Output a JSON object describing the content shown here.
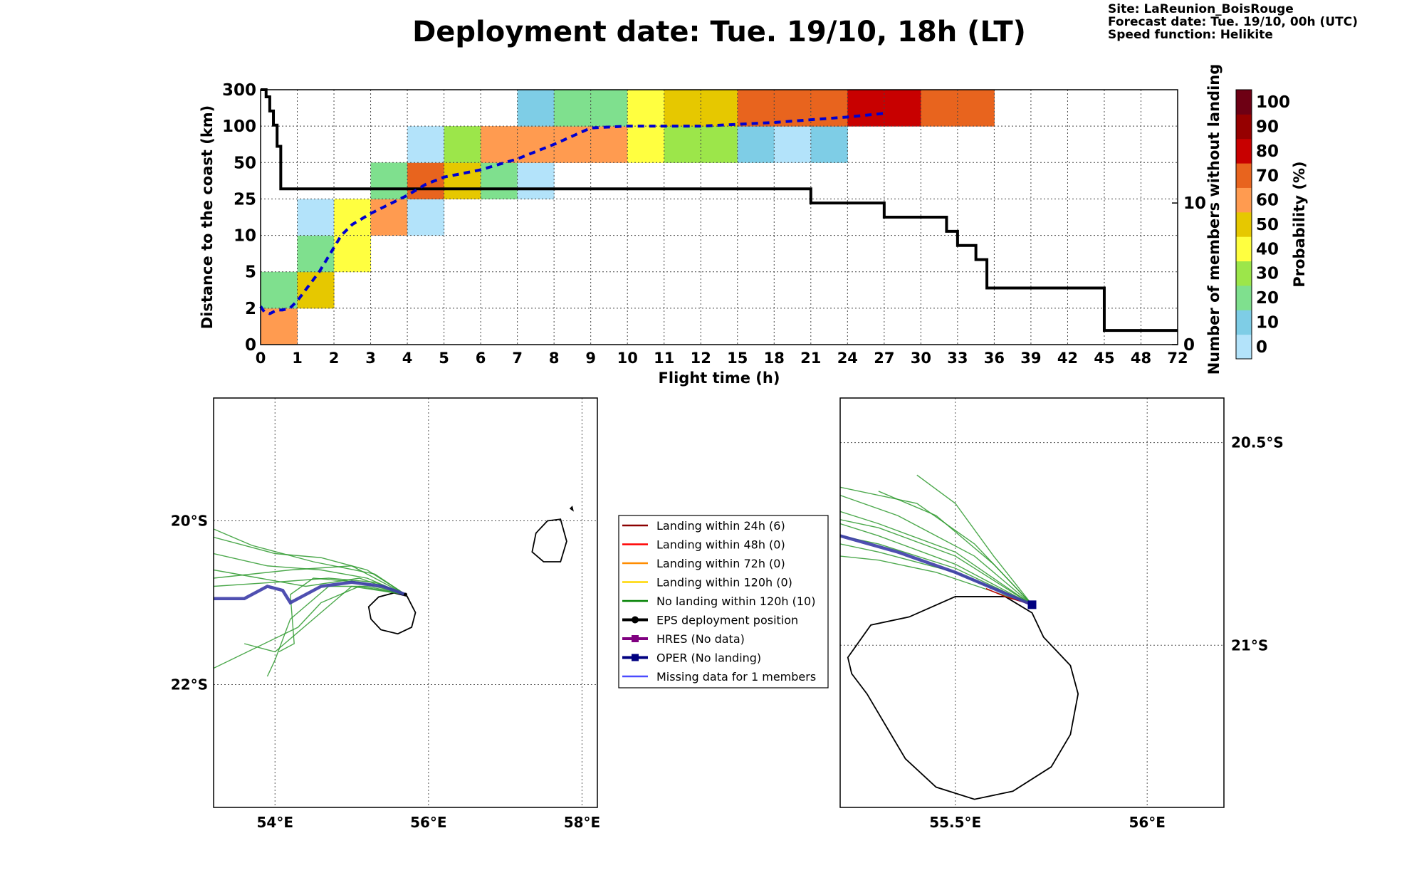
{
  "title": "Deployment date: Tue. 19/10, 18h (LT)",
  "info": {
    "site": "Site: LaReunion_BoisRouge",
    "forecast": "Forecast date: Tue. 19/10, 00h (UTC)",
    "speed": "Speed function: Helikite"
  },
  "chart_data": [
    {
      "type": "heatmap",
      "xlabel": "Flight time (h)",
      "ylabel": "Distance to the coast (km)",
      "ylabel_right": "Number of members without landing",
      "colorbar_label": "Probability (%)",
      "x_ticks": [
        "0",
        "1",
        "2",
        "3",
        "4",
        "5",
        "6",
        "7",
        "8",
        "9",
        "10",
        "11",
        "12",
        "15",
        "18",
        "21",
        "24",
        "27",
        "30",
        "33",
        "36",
        "39",
        "42",
        "45",
        "48",
        "72"
      ],
      "y_ticks": [
        "0",
        "2",
        "5",
        "10",
        "25",
        "50",
        "100",
        "300"
      ],
      "right_ticks": [
        {
          "label": "0",
          "value": 0
        },
        {
          "label": "10",
          "value": 10
        }
      ],
      "right_ylim": [
        0,
        18
      ],
      "grid": true,
      "colorbar": {
        "ticks": [
          "0",
          "10",
          "20",
          "30",
          "40",
          "50",
          "60",
          "70",
          "80",
          "90",
          "100"
        ],
        "colors": [
          "#b3e3fa",
          "#7ecde6",
          "#7fe08e",
          "#9ce64a",
          "#ffff40",
          "#e6c800",
          "#ff9b50",
          "#e8641e",
          "#c80000",
          "#960000",
          "#6e0014"
        ]
      },
      "cells": [
        {
          "x": 0,
          "y": 0,
          "p": 60
        },
        {
          "x": 0,
          "y": 1,
          "p": 20
        },
        {
          "x": 1,
          "y": 1,
          "p": 50
        },
        {
          "x": 1,
          "y": 2,
          "p": 20
        },
        {
          "x": 1,
          "y": 3,
          "p": 0
        },
        {
          "x": 2,
          "y": 2,
          "p": 40
        },
        {
          "x": 2,
          "y": 3,
          "p": 40
        },
        {
          "x": 3,
          "y": 3,
          "p": 60
        },
        {
          "x": 3,
          "y": 4,
          "p": 20
        },
        {
          "x": 4,
          "y": 3,
          "p": 0
        },
        {
          "x": 4,
          "y": 4,
          "p": 70
        },
        {
          "x": 4,
          "y": 5,
          "p": 0
        },
        {
          "x": 5,
          "y": 4,
          "p": 50
        },
        {
          "x": 5,
          "y": 5,
          "p": 30
        },
        {
          "x": 6,
          "y": 4,
          "p": 20
        },
        {
          "x": 6,
          "y": 5,
          "p": 60
        },
        {
          "x": 7,
          "y": 4,
          "p": 0
        },
        {
          "x": 7,
          "y": 5,
          "p": 60
        },
        {
          "x": 7,
          "y": 6,
          "p": 10
        },
        {
          "x": 8,
          "y": 5,
          "p": 60
        },
        {
          "x": 8,
          "y": 6,
          "p": 20
        },
        {
          "x": 9,
          "y": 5,
          "p": 60
        },
        {
          "x": 9,
          "y": 6,
          "p": 20
        },
        {
          "x": 10,
          "y": 5,
          "p": 40
        },
        {
          "x": 10,
          "y": 6,
          "p": 40
        },
        {
          "x": 11,
          "y": 5,
          "p": 30
        },
        {
          "x": 11,
          "y": 6,
          "p": 50
        },
        {
          "x": 12,
          "y": 5,
          "p": 30
        },
        {
          "x": 12,
          "y": 6,
          "p": 50
        },
        {
          "x": 13,
          "y": 5,
          "p": 10
        },
        {
          "x": 13,
          "y": 6,
          "p": 70
        },
        {
          "x": 14,
          "y": 5,
          "p": 0
        },
        {
          "x": 14,
          "y": 6,
          "p": 70
        },
        {
          "x": 15,
          "y": 5,
          "p": 10
        },
        {
          "x": 15,
          "y": 6,
          "p": 70
        },
        {
          "x": 16,
          "y": 6,
          "p": 80
        },
        {
          "x": 17,
          "y": 6,
          "p": 80
        },
        {
          "x": 18,
          "y": 6,
          "p": 70
        },
        {
          "x": 19,
          "y": 6,
          "p": 70
        }
      ],
      "dashed_median": {
        "color": "#0000d0",
        "x": [
          0,
          0.1,
          0.25,
          0.45,
          0.6,
          0.8,
          1.0,
          1.3,
          1.6,
          1.9,
          2.2,
          2.5,
          3.0,
          3.5,
          4.0,
          4.5,
          5.0,
          6.0,
          7.0,
          8.0,
          9.0,
          10.0,
          12.0,
          14.0,
          16.0,
          17.0
        ],
        "y": [
          1.05,
          0.9,
          0.85,
          0.95,
          0.95,
          1.0,
          1.2,
          1.6,
          2.0,
          2.5,
          3.0,
          3.3,
          3.6,
          3.85,
          4.1,
          4.4,
          4.6,
          4.8,
          5.1,
          5.5,
          5.95,
          6.0,
          6.0,
          6.1,
          6.25,
          6.35
        ]
      },
      "members_without_landing": {
        "color": "#000000",
        "x": [
          0,
          0.15,
          0.25,
          0.35,
          0.45,
          0.55,
          14.7,
          15.0,
          16.5,
          17.0,
          18.5,
          18.7,
          19.0,
          19.5,
          19.8,
          22.5,
          23.0
        ],
        "y": [
          18,
          17.5,
          16.5,
          15.5,
          14,
          11,
          11,
          10,
          10,
          9,
          9,
          8,
          7,
          6,
          4,
          4,
          1
        ]
      }
    },
    {
      "type": "map",
      "x_ticks": [
        "54°E",
        "56°E",
        "58°E"
      ],
      "y_ticks": [
        "20°S",
        "22°S"
      ],
      "xlim": [
        53.2,
        58.2
      ],
      "ylim": [
        -23.5,
        -18.5
      ],
      "deployment": [
        55.7,
        -20.9
      ],
      "oper_track": [
        [
          55.7,
          -20.9
        ],
        [
          55.4,
          -20.8
        ],
        [
          55.0,
          -20.75
        ],
        [
          54.6,
          -20.8
        ],
        [
          54.2,
          -21.0
        ],
        [
          54.1,
          -20.85
        ],
        [
          53.9,
          -20.8
        ],
        [
          53.6,
          -20.95
        ],
        [
          53.2,
          -20.95
        ]
      ],
      "member_tracks": [
        [
          [
            55.7,
            -20.9
          ],
          [
            55.2,
            -20.6
          ],
          [
            54.6,
            -20.45
          ],
          [
            54.0,
            -20.4
          ],
          [
            53.2,
            -20.2
          ]
        ],
        [
          [
            55.7,
            -20.9
          ],
          [
            55.3,
            -20.65
          ],
          [
            54.5,
            -20.5
          ],
          [
            53.7,
            -20.3
          ],
          [
            53.2,
            -20.1
          ]
        ],
        [
          [
            55.7,
            -20.9
          ],
          [
            55.0,
            -20.55
          ],
          [
            54.2,
            -20.6
          ],
          [
            53.2,
            -20.7
          ]
        ],
        [
          [
            55.7,
            -20.9
          ],
          [
            55.3,
            -20.75
          ],
          [
            54.7,
            -20.7
          ],
          [
            54.0,
            -20.75
          ],
          [
            53.2,
            -20.8
          ]
        ],
        [
          [
            55.7,
            -20.9
          ],
          [
            55.1,
            -20.7
          ],
          [
            54.4,
            -20.8
          ],
          [
            53.8,
            -20.7
          ],
          [
            53.2,
            -20.6
          ]
        ],
        [
          [
            55.7,
            -20.9
          ],
          [
            55.0,
            -20.8
          ],
          [
            54.5,
            -21.2
          ],
          [
            54.0,
            -21.6
          ],
          [
            53.6,
            -21.5
          ]
        ],
        [
          [
            55.7,
            -20.9
          ],
          [
            55.1,
            -20.8
          ],
          [
            54.6,
            -21.0
          ],
          [
            54.3,
            -21.3
          ],
          [
            53.2,
            -21.8
          ]
        ],
        [
          [
            55.7,
            -20.9
          ],
          [
            55.2,
            -20.8
          ],
          [
            54.7,
            -20.8
          ],
          [
            54.2,
            -21.2
          ],
          [
            54.0,
            -21.7
          ],
          [
            53.9,
            -21.9
          ]
        ],
        [
          [
            55.7,
            -20.9
          ],
          [
            55.1,
            -20.75
          ],
          [
            54.5,
            -20.7
          ],
          [
            54.2,
            -20.9
          ],
          [
            54.25,
            -21.5
          ],
          [
            54.05,
            -21.6
          ]
        ],
        [
          [
            55.7,
            -20.9
          ],
          [
            55.2,
            -20.7
          ],
          [
            54.6,
            -20.6
          ],
          [
            53.9,
            -20.55
          ],
          [
            53.2,
            -20.4
          ]
        ]
      ],
      "islands": [
        {
          "name": "reunion",
          "outline": [
            [
              55.22,
              -21.05
            ],
            [
              55.35,
              -20.93
            ],
            [
              55.55,
              -20.88
            ],
            [
              55.72,
              -20.92
            ],
            [
              55.83,
              -21.12
            ],
            [
              55.78,
              -21.3
            ],
            [
              55.6,
              -21.38
            ],
            [
              55.38,
              -21.33
            ],
            [
              55.25,
              -21.2
            ]
          ]
        },
        {
          "name": "mauritius",
          "outline": [
            [
              57.55,
              -20.0
            ],
            [
              57.72,
              -19.98
            ],
            [
              57.8,
              -20.25
            ],
            [
              57.72,
              -20.5
            ],
            [
              57.5,
              -20.5
            ],
            [
              57.35,
              -20.38
            ],
            [
              57.4,
              -20.15
            ]
          ]
        },
        {
          "name": "islet",
          "outline": [
            [
              57.85,
              -19.85
            ],
            [
              57.87,
              -19.83
            ],
            [
              57.88,
              -19.87
            ]
          ]
        }
      ]
    },
    {
      "type": "map",
      "x_ticks": [
        "55.5°E",
        "56°E"
      ],
      "y_ticks": [
        "20.5°S",
        "21°S"
      ],
      "xlim": [
        55.2,
        56.2
      ],
      "ylim": [
        -21.4,
        -20.39
      ],
      "deployment": [
        55.7,
        -20.9
      ],
      "oper_track": [
        [
          55.7,
          -20.9
        ],
        [
          55.5,
          -20.82
        ],
        [
          55.35,
          -20.77
        ],
        [
          55.2,
          -20.73
        ]
      ],
      "member_tracks": [
        [
          [
            55.7,
            -20.9
          ],
          [
            55.55,
            -20.75
          ],
          [
            55.4,
            -20.65
          ],
          [
            55.2,
            -20.61
          ]
        ],
        [
          [
            55.7,
            -20.9
          ],
          [
            55.55,
            -20.78
          ],
          [
            55.35,
            -20.68
          ],
          [
            55.2,
            -20.63
          ]
        ],
        [
          [
            55.7,
            -20.9
          ],
          [
            55.5,
            -20.77
          ],
          [
            55.3,
            -20.7
          ],
          [
            55.2,
            -20.67
          ]
        ],
        [
          [
            55.7,
            -20.9
          ],
          [
            55.5,
            -20.8
          ],
          [
            55.3,
            -20.73
          ],
          [
            55.2,
            -20.7
          ]
        ],
        [
          [
            55.7,
            -20.9
          ],
          [
            55.5,
            -20.81
          ],
          [
            55.3,
            -20.75
          ],
          [
            55.2,
            -20.73
          ]
        ],
        [
          [
            55.7,
            -20.9
          ],
          [
            55.5,
            -20.82
          ],
          [
            55.3,
            -20.77
          ],
          [
            55.2,
            -20.75
          ]
        ],
        [
          [
            55.7,
            -20.9
          ],
          [
            55.45,
            -20.82
          ],
          [
            55.3,
            -20.79
          ],
          [
            55.2,
            -20.78
          ]
        ],
        [
          [
            55.7,
            -20.9
          ],
          [
            55.6,
            -20.78
          ],
          [
            55.5,
            -20.65
          ],
          [
            55.4,
            -20.58
          ]
        ],
        [
          [
            55.7,
            -20.9
          ],
          [
            55.6,
            -20.8
          ],
          [
            55.45,
            -20.68
          ],
          [
            55.3,
            -20.62
          ]
        ],
        [
          [
            55.7,
            -20.9
          ],
          [
            55.5,
            -20.78
          ],
          [
            55.3,
            -20.71
          ],
          [
            55.2,
            -20.69
          ]
        ]
      ],
      "red_track": [
        [
          55.7,
          -20.9
        ],
        [
          55.63,
          -20.88
        ],
        [
          55.58,
          -20.86
        ]
      ],
      "islands": [
        {
          "name": "reunion",
          "outline": [
            [
              55.22,
              -21.03
            ],
            [
              55.28,
              -20.95
            ],
            [
              55.38,
              -20.93
            ],
            [
              55.5,
              -20.88
            ],
            [
              55.63,
              -20.88
            ],
            [
              55.7,
              -20.92
            ],
            [
              55.73,
              -20.98
            ],
            [
              55.8,
              -21.05
            ],
            [
              55.82,
              -21.12
            ],
            [
              55.8,
              -21.22
            ],
            [
              55.75,
              -21.3
            ],
            [
              55.65,
              -21.36
            ],
            [
              55.55,
              -21.38
            ],
            [
              55.45,
              -21.35
            ],
            [
              55.37,
              -21.28
            ],
            [
              55.32,
              -21.2
            ],
            [
              55.27,
              -21.12
            ],
            [
              55.23,
              -21.07
            ]
          ]
        }
      ]
    }
  ],
  "legend": {
    "items": [
      {
        "label": "Landing within 24h (6)",
        "color": "#8b0000",
        "marker": "none"
      },
      {
        "label": "Landing within 48h (0)",
        "color": "#ff0000",
        "marker": "none"
      },
      {
        "label": "Landing within 72h (0)",
        "color": "#ff8c00",
        "marker": "none"
      },
      {
        "label": "Landing within 120h (0)",
        "color": "#ffd700",
        "marker": "none"
      },
      {
        "label": "No landing within 120h (10)",
        "color": "#008000",
        "marker": "none"
      },
      {
        "label": "EPS deployment position",
        "color": "#000000",
        "marker": "circle"
      },
      {
        "label": "HRES (No data)",
        "color": "#800080",
        "marker": "square"
      },
      {
        "label": "OPER (No landing)",
        "color": "#000080",
        "marker": "square"
      },
      {
        "label": "Missing data for 1 members",
        "color": "#4b4bff",
        "marker": "none"
      }
    ]
  }
}
